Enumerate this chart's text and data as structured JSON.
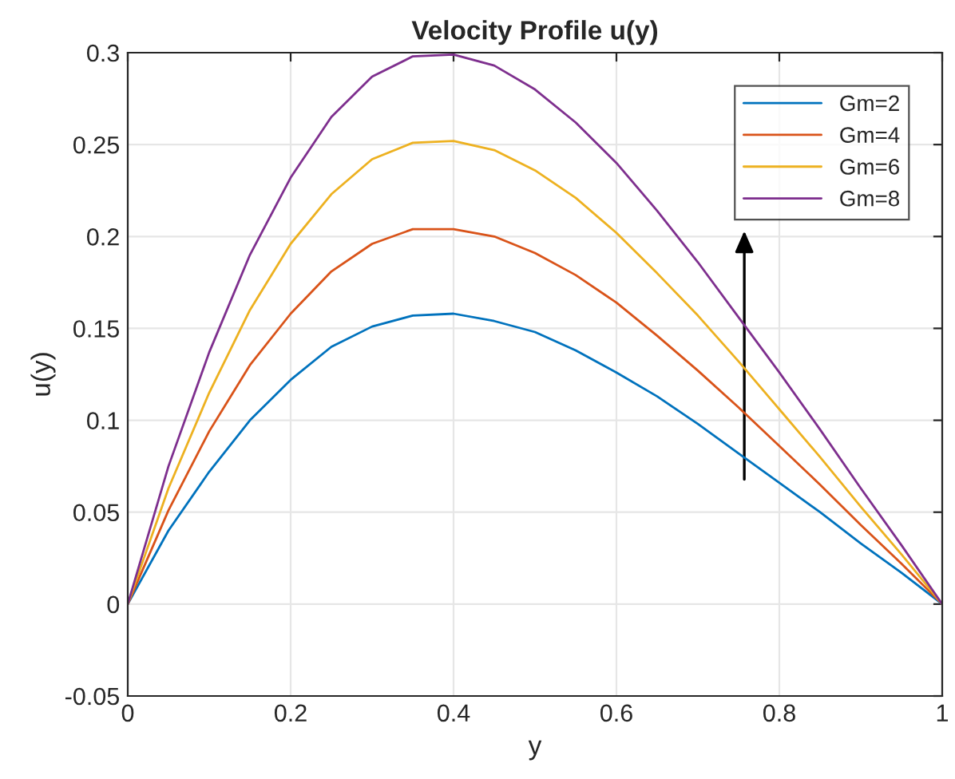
{
  "chart_data": {
    "type": "line",
    "title": "Velocity Profile u(y)",
    "xlabel": "y",
    "ylabel": "u(y)",
    "x": [
      0,
      0.05,
      0.1,
      0.15,
      0.2,
      0.25,
      0.3,
      0.35,
      0.4,
      0.45,
      0.5,
      0.55,
      0.6,
      0.65,
      0.7,
      0.75,
      0.8,
      0.85,
      0.9,
      0.95,
      1
    ],
    "series": [
      {
        "name": "Gm=2",
        "color": "#0072bd",
        "values": [
          0,
          0.04,
          0.072,
          0.1,
          0.122,
          0.14,
          0.151,
          0.157,
          0.158,
          0.154,
          0.148,
          0.138,
          0.126,
          0.113,
          0.098,
          0.082,
          0.066,
          0.05,
          0.033,
          0.017,
          0
        ]
      },
      {
        "name": "Gm=4",
        "color": "#d95319",
        "values": [
          0,
          0.051,
          0.094,
          0.13,
          0.158,
          0.181,
          0.196,
          0.204,
          0.204,
          0.2,
          0.191,
          0.179,
          0.164,
          0.146,
          0.127,
          0.107,
          0.086,
          0.065,
          0.043,
          0.022,
          0
        ]
      },
      {
        "name": "Gm=6",
        "color": "#edb120",
        "values": [
          0,
          0.063,
          0.115,
          0.16,
          0.196,
          0.223,
          0.242,
          0.251,
          0.252,
          0.247,
          0.236,
          0.221,
          0.202,
          0.18,
          0.157,
          0.132,
          0.106,
          0.08,
          0.053,
          0.027,
          0
        ]
      },
      {
        "name": "Gm=8",
        "color": "#7e2f8e",
        "values": [
          0,
          0.075,
          0.137,
          0.19,
          0.232,
          0.265,
          0.287,
          0.298,
          0.299,
          0.293,
          0.28,
          0.262,
          0.24,
          0.214,
          0.186,
          0.156,
          0.126,
          0.095,
          0.063,
          0.032,
          0
        ]
      }
    ],
    "xlim": [
      0,
      1
    ],
    "xticks": [
      0,
      0.2,
      0.4,
      0.6,
      0.8,
      1
    ],
    "ylim": [
      -0.05,
      0.3
    ],
    "yticks": [
      -0.05,
      0,
      0.05,
      0.1,
      0.15,
      0.2,
      0.25,
      0.3
    ],
    "grid": true,
    "legend": "top right",
    "line_style": "solid",
    "marker": "none"
  }
}
